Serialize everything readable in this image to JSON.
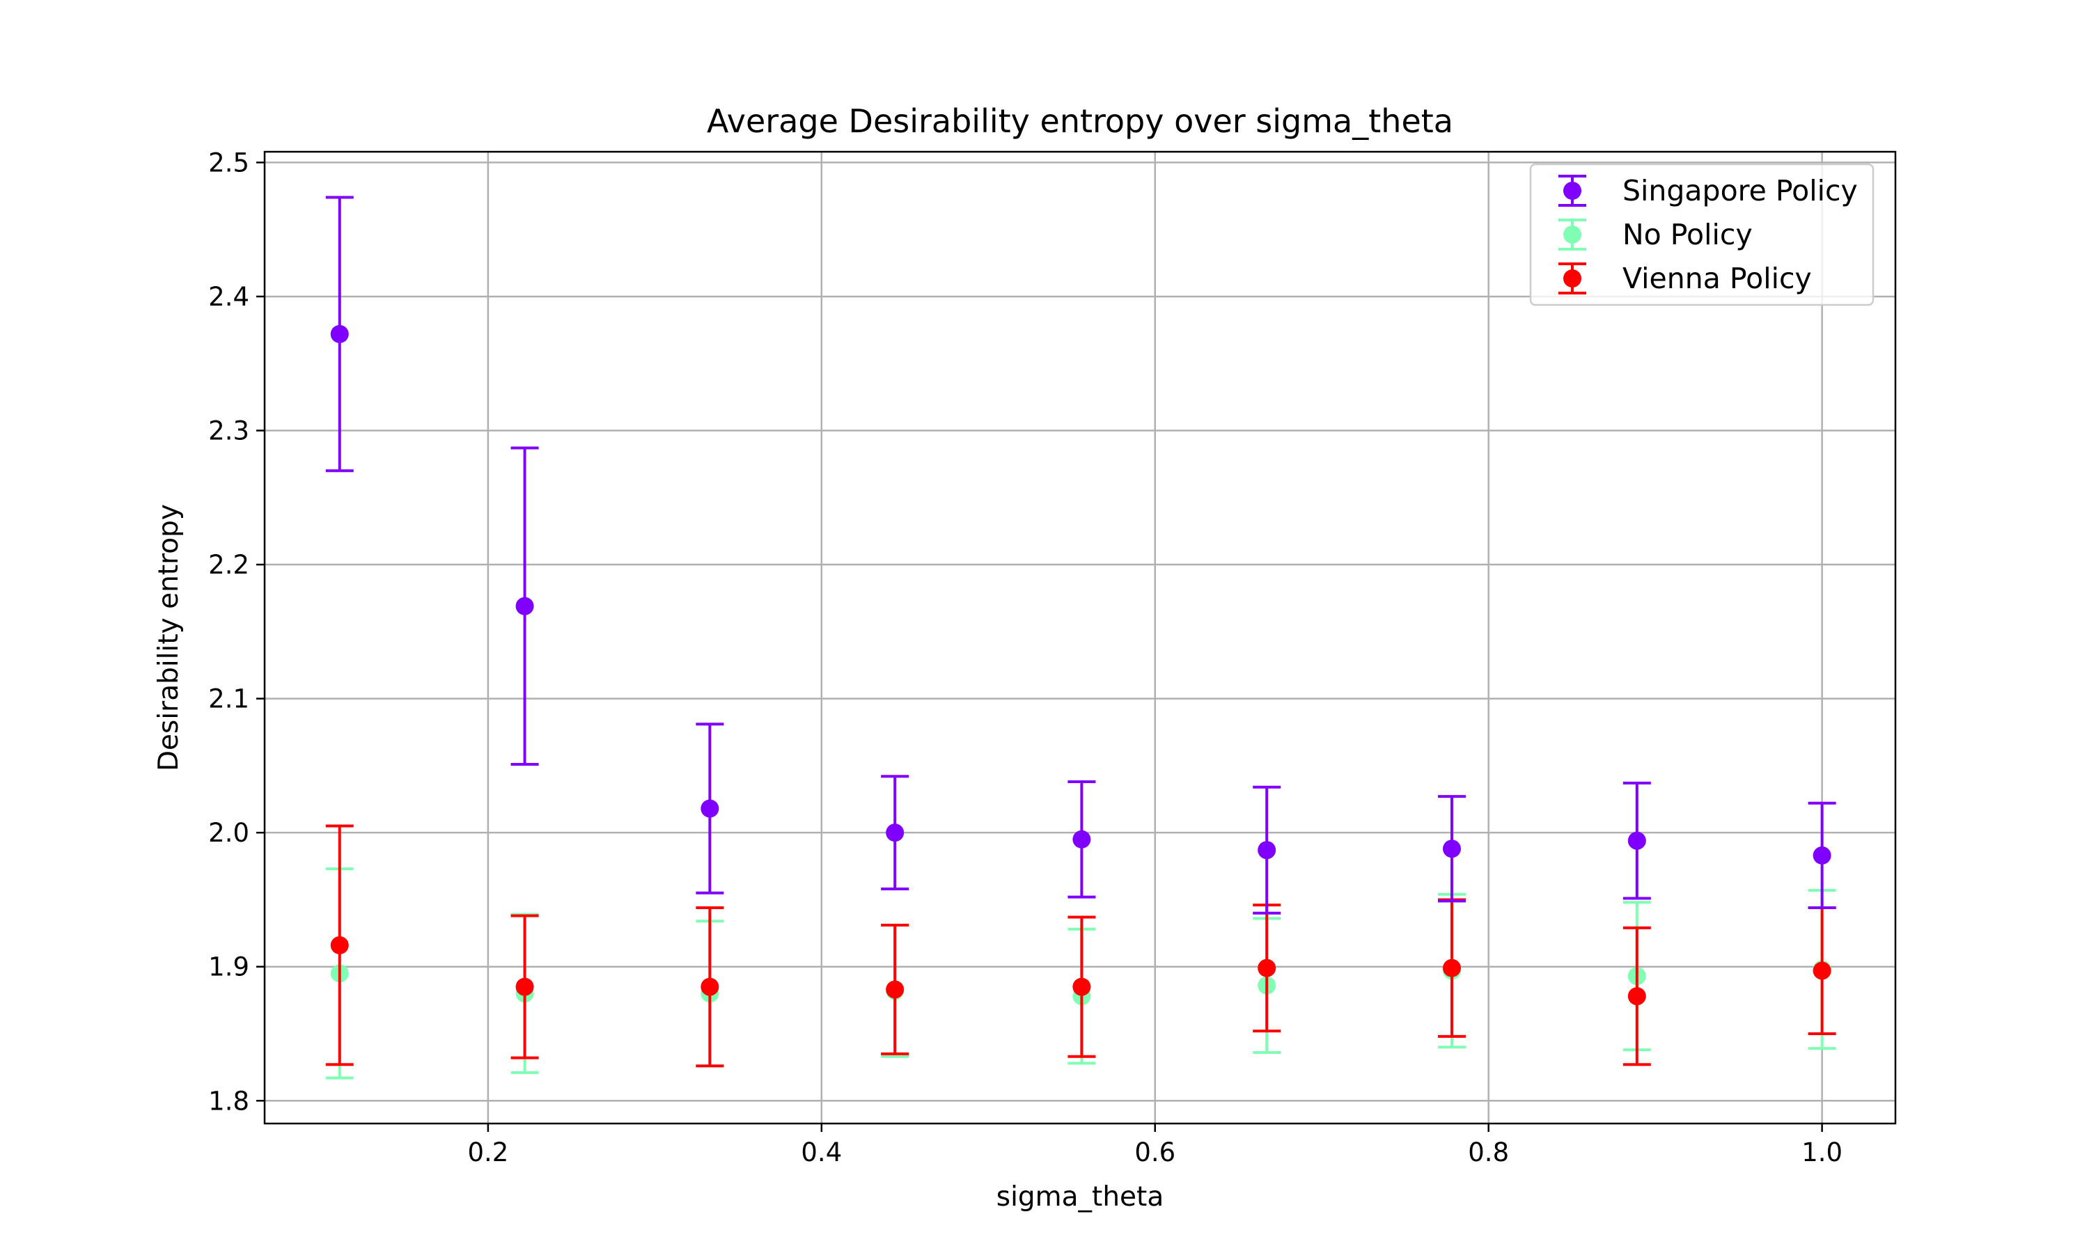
{
  "chart_data": {
    "type": "scatter",
    "title": "Average Desirability entropy over sigma_theta",
    "xlabel": "sigma_theta",
    "ylabel": "Desirability entropy",
    "xlim": [
      0.066,
      1.044
    ],
    "ylim": [
      1.783,
      2.508
    ],
    "grid": true,
    "legend_position": "top-right",
    "x_ticks": [
      {
        "value": 0.2,
        "label": "0.2"
      },
      {
        "value": 0.4,
        "label": "0.4"
      },
      {
        "value": 0.6,
        "label": "0.6"
      },
      {
        "value": 0.8,
        "label": "0.8"
      },
      {
        "value": 1.0,
        "label": "1.0"
      }
    ],
    "y_ticks": [
      {
        "value": 1.8,
        "label": "1.8"
      },
      {
        "value": 1.9,
        "label": "1.9"
      },
      {
        "value": 2.0,
        "label": "2.0"
      },
      {
        "value": 2.1,
        "label": "2.1"
      },
      {
        "value": 2.2,
        "label": "2.2"
      },
      {
        "value": 2.3,
        "label": "2.3"
      },
      {
        "value": 2.4,
        "label": "2.4"
      },
      {
        "value": 2.5,
        "label": "2.5"
      }
    ],
    "x": [
      0.111,
      0.222,
      0.333,
      0.444,
      0.556,
      0.667,
      0.778,
      0.889,
      1.0
    ],
    "series": [
      {
        "name": "No Policy",
        "color": "#80ffb4",
        "values": [
          1.895,
          1.88,
          1.88,
          1.882,
          1.878,
          1.886,
          1.897,
          1.893,
          1.898
        ],
        "errors": [
          0.078,
          0.059,
          0.054,
          0.049,
          0.05,
          0.05,
          0.057,
          0.055,
          0.059
        ]
      },
      {
        "name": "Vienna Policy",
        "color": "#ff0000",
        "values": [
          1.916,
          1.885,
          1.885,
          1.883,
          1.885,
          1.899,
          1.899,
          1.878,
          1.897
        ],
        "errors": [
          0.089,
          0.053,
          0.059,
          0.048,
          0.052,
          0.047,
          0.051,
          0.051,
          0.047
        ]
      },
      {
        "name": "Singapore Policy",
        "color": "#8000ff",
        "values": [
          2.372,
          2.169,
          2.018,
          2.0,
          1.995,
          1.987,
          1.988,
          1.994,
          1.983
        ],
        "errors": [
          0.102,
          0.118,
          0.063,
          0.042,
          0.043,
          0.047,
          0.039,
          0.043,
          0.039
        ]
      }
    ],
    "legend_order": [
      "Singapore Policy",
      "No Policy",
      "Vienna Policy"
    ]
  }
}
